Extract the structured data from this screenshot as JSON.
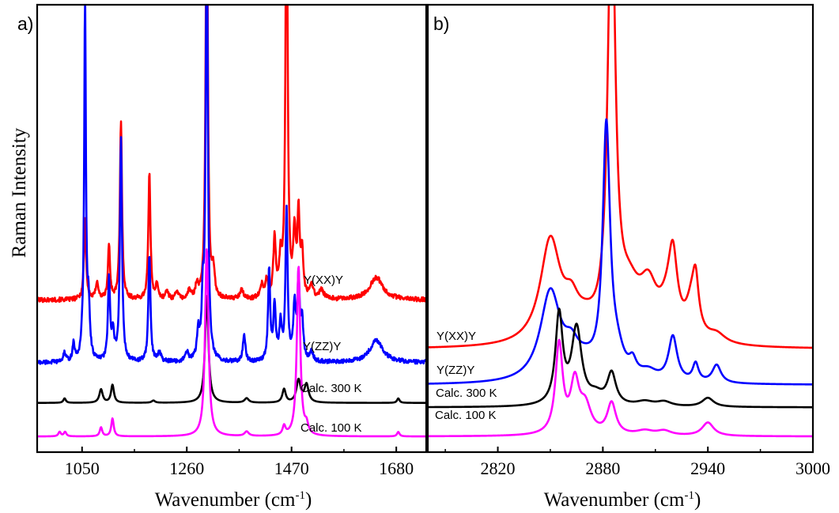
{
  "figure": {
    "ylabel": "Raman Intensity"
  },
  "chart_data": [
    {
      "type": "line",
      "panel": "a)",
      "xlabel": "Wavenumber (cm",
      "xlabel_sup": "-1",
      "xlabel_close": ")",
      "xlim": [
        960,
        1740
      ],
      "ylim": [
        0,
        100
      ],
      "xticks": [
        1050,
        1260,
        1470,
        1680
      ],
      "series": [
        {
          "name": "Y(XX)Y",
          "color": "#ff0000",
          "baseline": 34,
          "noise": 0.5,
          "peaks": [
            [
              1056,
              18,
              2.5
            ],
            [
              1080,
              4,
              3
            ],
            [
              1104,
              12,
              2.5
            ],
            [
              1128,
              40,
              2.5
            ],
            [
              1185,
              28,
              2.5
            ],
            [
              1200,
              3,
              3
            ],
            [
              1220,
              2,
              3
            ],
            [
              1240,
              2,
              3
            ],
            [
              1265,
              2,
              3
            ],
            [
              1280,
              3,
              3
            ],
            [
              1300,
              100,
              2.5
            ],
            [
              1313,
              6,
              3
            ],
            [
              1370,
              2,
              4
            ],
            [
              1410,
              3,
              4
            ],
            [
              1420,
              4,
              3
            ],
            [
              1436,
              13,
              3
            ],
            [
              1448,
              8,
              3
            ],
            [
              1460,
              100,
              2.5
            ],
            [
              1476,
              14,
              3
            ],
            [
              1484,
              18,
              2.5
            ],
            [
              1491,
              10,
              3
            ],
            [
              1510,
              3,
              4
            ],
            [
              1530,
              2,
              5
            ],
            [
              1640,
              5,
              16
            ]
          ],
          "end_label": "Y(XX)Y"
        },
        {
          "name": "Y(ZZ)Y",
          "color": "#0000ff",
          "baseline": 20,
          "noise": 0.45,
          "peaks": [
            [
              1015,
              2,
              3
            ],
            [
              1033,
              4,
              2.5
            ],
            [
              1050,
              3,
              2.5
            ],
            [
              1056,
              80,
              2
            ],
            [
              1063,
              12,
              3
            ],
            [
              1104,
              18,
              2.5
            ],
            [
              1112,
              6,
              3
            ],
            [
              1128,
              50,
              2.5
            ],
            [
              1185,
              24,
              2.5
            ],
            [
              1205,
              2,
              4
            ],
            [
              1260,
              2,
              4
            ],
            [
              1283,
              6,
              3
            ],
            [
              1292,
              12,
              2.5
            ],
            [
              1300,
              100,
              2.5
            ],
            [
              1375,
              6,
              3
            ],
            [
              1425,
              20,
              2.5
            ],
            [
              1436,
              12,
              3
            ],
            [
              1448,
              8,
              3
            ],
            [
              1460,
              34,
              2.5
            ],
            [
              1476,
              12,
              3
            ],
            [
              1484,
              18,
              2.5
            ],
            [
              1491,
              9,
              3
            ],
            [
              1510,
              2,
              4
            ],
            [
              1640,
              5,
              16
            ]
          ],
          "end_label": "Y(ZZ)Y"
        },
        {
          "name": "Calc. 300 K",
          "color": "#000000",
          "baseline": 11,
          "noise": 0,
          "peaks": [
            [
              1015,
              1,
              3
            ],
            [
              1088,
              3,
              4
            ],
            [
              1111,
              4,
              3.5
            ],
            [
              1193,
              0.5,
              4
            ],
            [
              1300,
              24,
              4
            ],
            [
              1380,
              1,
              5
            ],
            [
              1455,
              3,
              4
            ],
            [
              1484,
              5,
              5
            ],
            [
              1500,
              4,
              5
            ],
            [
              1684,
              1,
              3
            ]
          ],
          "end_label": "Calc. 300 K"
        },
        {
          "name": "Calc. 100 K",
          "color": "#ff00ff",
          "baseline": 3.5,
          "noise": 0,
          "peaks": [
            [
              1005,
              1,
              3
            ],
            [
              1016,
              1,
              3
            ],
            [
              1088,
              2,
              3
            ],
            [
              1111,
              4,
              3
            ],
            [
              1300,
              42,
              4
            ],
            [
              1380,
              1,
              5
            ],
            [
              1455,
              2,
              3.5
            ],
            [
              1484,
              38,
              4
            ],
            [
              1500,
              2,
              4
            ],
            [
              1684,
              1,
              3
            ]
          ],
          "end_label": "Calc. 100 K"
        }
      ]
    },
    {
      "type": "line",
      "panel": "b)",
      "xlabel": "Wavenumber (cm",
      "xlabel_sup": "-1",
      "xlabel_close": ")",
      "xlim": [
        2780,
        3000
      ],
      "ylim": [
        0,
        100
      ],
      "xticks": [
        2820,
        2880,
        2940,
        3000
      ],
      "series": [
        {
          "name": "Y(XX)Y",
          "color": "#ff0000",
          "baseline": 23,
          "noise": 0,
          "peaks": [
            [
              2850,
              23,
              7
            ],
            [
              2862,
              6,
              5
            ],
            [
              2870,
              3,
              8
            ],
            [
              2885,
              100,
              2.5
            ],
            [
              2895,
              10,
              8
            ],
            [
              2906,
              10,
              6
            ],
            [
              2917,
              6,
              6
            ],
            [
              2920,
              15,
              3
            ],
            [
              2931,
              8,
              4
            ],
            [
              2933,
              9,
              2
            ],
            [
              2945,
              2,
              6
            ]
          ],
          "end_label": "Y(XX)Y"
        },
        {
          "name": "Y(ZZ)Y",
          "color": "#0000ff",
          "baseline": 15,
          "noise": 0,
          "peaks": [
            [
              2850,
              20,
              7
            ],
            [
              2862,
              5,
              5
            ],
            [
              2870,
              3,
              8
            ],
            [
              2882,
              55,
              2.5
            ],
            [
              2888,
              5,
              5
            ],
            [
              2897,
              3,
              2.5
            ],
            [
              2906,
              2,
              6
            ],
            [
              2920,
              10,
              3
            ],
            [
              2933,
              4,
              2
            ],
            [
              2945,
              4,
              3
            ]
          ],
          "end_label": "Y(ZZ)Y"
        },
        {
          "name": "Calc. 300 K",
          "color": "#000000",
          "baseline": 10,
          "noise": 0,
          "peaks": [
            [
              2855,
              20,
              2.5
            ],
            [
              2865,
              17,
              3.5
            ],
            [
              2876,
              2,
              5
            ],
            [
              2885,
              7,
              3
            ],
            [
              2904,
              1,
              6
            ],
            [
              2915,
              1,
              5
            ],
            [
              2940,
              2,
              4
            ]
          ],
          "end_label": "Calc. 300 K"
        },
        {
          "name": "Calc. 100 K",
          "color": "#ff00ff",
          "baseline": 3.5,
          "noise": 0,
          "peaks": [
            [
              2855,
              20,
              2.5
            ],
            [
              2864,
              11,
              3
            ],
            [
              2870,
              6,
              4
            ],
            [
              2885,
              7,
              3
            ],
            [
              2904,
              1,
              6
            ],
            [
              2915,
              1,
              5
            ],
            [
              2940,
              3,
              4
            ]
          ],
          "end_label": "Calc. 100 K"
        }
      ]
    }
  ]
}
